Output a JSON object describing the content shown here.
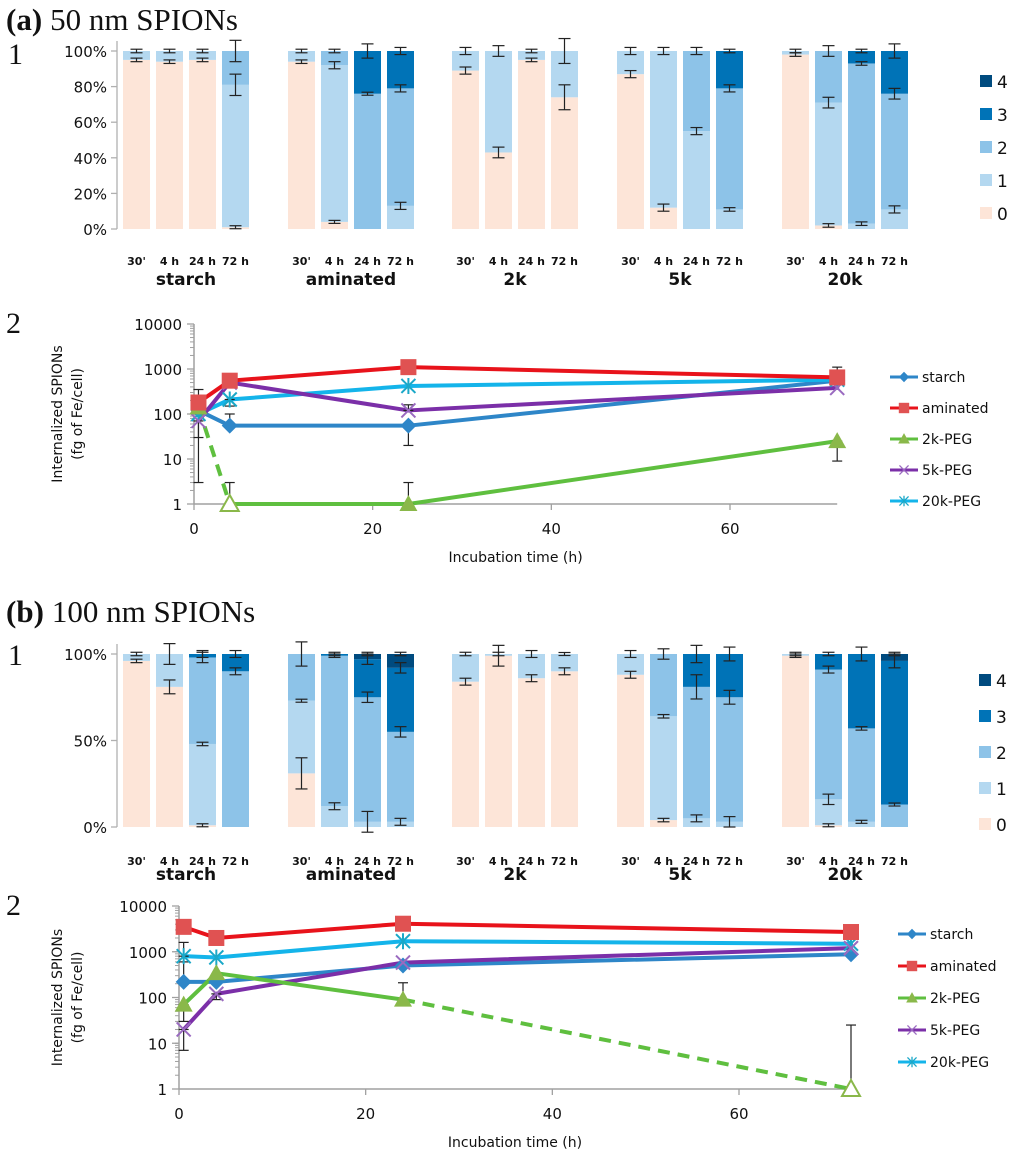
{
  "panels": {
    "a": {
      "letter": "(a)",
      "title": "50 nm SPIONs"
    },
    "b": {
      "letter": "(b)",
      "title": "100 nm SPIONs"
    }
  },
  "sub_labels": {
    "one": "1",
    "two": "2"
  },
  "colors": {
    "level_0": "#fde5d8",
    "level_1": "#b4d8f0",
    "level_2": "#8dc3e8",
    "level_3": "#0073b7",
    "level_4": "#004b7f",
    "starch": "#2e86c8",
    "aminated": "#e8131b",
    "aminated_marker": "#e05252",
    "2k-PEG": "#5fbf3f",
    "2k-PEG_marker": "#8ab84a",
    "5k-PEG": "#7b2fa8",
    "5k-PEG_marker": "#9a6ac0",
    "20k-PEG": "#14b4ea",
    "20k-PEG_marker": "#1aa8c8"
  },
  "chart_data": [
    {
      "id": "a1",
      "type": "bar",
      "stacked": true,
      "ylim": [
        0,
        100
      ],
      "yticks": [
        "0%",
        "20%",
        "40%",
        "60%",
        "80%",
        "100%"
      ],
      "ytick_values": [
        0,
        20,
        40,
        60,
        80,
        100
      ],
      "legend": [
        "4",
        "3",
        "2",
        "1",
        "0"
      ],
      "legend_placement": "right",
      "time_labels": [
        "30'",
        "4 h",
        "24 h",
        "72 h"
      ],
      "groups": [
        {
          "name": "starch",
          "bars": [
            {
              "levels": [
                95,
                5,
                0,
                0,
                0
              ],
              "err": [
                1,
                1
              ]
            },
            {
              "levels": [
                94,
                6,
                0,
                0,
                0
              ],
              "err": [
                1,
                1
              ]
            },
            {
              "levels": [
                95,
                5,
                0,
                0,
                0
              ],
              "err": [
                1,
                1
              ]
            },
            {
              "levels": [
                1,
                80,
                19,
                0,
                0
              ],
              "err": [
                0.5,
                6,
                6
              ]
            }
          ]
        },
        {
          "name": "aminated",
          "bars": [
            {
              "levels": [
                94,
                6,
                0,
                0,
                0
              ],
              "err": [
                1,
                1
              ]
            },
            {
              "levels": [
                4,
                88,
                8,
                0,
                0
              ],
              "err": [
                0.5,
                2,
                1
              ]
            },
            {
              "levels": [
                0,
                0,
                76,
                24,
                0
              ],
              "err": [
                0.5,
                4,
                4
              ]
            },
            {
              "levels": [
                0,
                13,
                66,
                21,
                0
              ],
              "err": [
                2,
                2,
                2
              ]
            }
          ]
        },
        {
          "name": "2k",
          "bars": [
            {
              "levels": [
                89,
                11,
                0,
                0,
                0
              ],
              "err": [
                2,
                2
              ]
            },
            {
              "levels": [
                43,
                57,
                0,
                0,
                0
              ],
              "err": [
                3,
                3
              ]
            },
            {
              "levels": [
                95,
                5,
                0,
                0,
                0
              ],
              "err": [
                1,
                1
              ]
            },
            {
              "levels": [
                74,
                26,
                0,
                0,
                0
              ],
              "err": [
                7,
                7
              ]
            }
          ]
        },
        {
          "name": "5k",
          "bars": [
            {
              "levels": [
                87,
                13,
                0,
                0,
                0
              ],
              "err": [
                2,
                2
              ]
            },
            {
              "levels": [
                12,
                88,
                0,
                0,
                0
              ],
              "err": [
                2,
                2
              ]
            },
            {
              "levels": [
                0,
                55,
                45,
                0,
                0
              ],
              "err": [
                2,
                2
              ]
            },
            {
              "levels": [
                0,
                11,
                68,
                21,
                0
              ],
              "err": [
                1,
                2,
                1
              ]
            }
          ]
        },
        {
          "name": "20k",
          "bars": [
            {
              "levels": [
                98,
                2,
                0,
                0,
                0
              ],
              "err": [
                1,
                1
              ]
            },
            {
              "levels": [
                2,
                69,
                29,
                0,
                0
              ],
              "err": [
                1,
                3,
                3
              ]
            },
            {
              "levels": [
                0,
                3,
                90,
                7,
                0
              ],
              "err": [
                1,
                1,
                1
              ]
            },
            {
              "levels": [
                0,
                11,
                65,
                24,
                0
              ],
              "err": [
                2,
                3,
                4
              ]
            }
          ]
        }
      ]
    },
    {
      "id": "a2",
      "type": "line",
      "yscale": "log",
      "ylim": [
        1,
        10000
      ],
      "yticks": [
        "1",
        "10",
        "100",
        "1000",
        "10000"
      ],
      "ytick_values": [
        1,
        10,
        100,
        1000,
        10000
      ],
      "xlim": [
        0,
        72
      ],
      "xticks": [
        "0",
        "20",
        "40",
        "60"
      ],
      "xtick_values": [
        0,
        20,
        40,
        60
      ],
      "xlabel": "Incubation time (h)",
      "ylabel_line1": "Internalized  SPIONs",
      "ylabel_line2": "(fg of Fe/cell)",
      "legend_placement": "right",
      "series": [
        {
          "name": "starch",
          "marker": "diamond",
          "x": [
            0.5,
            4,
            24,
            72
          ],
          "y": [
            120,
            55,
            55,
            550
          ],
          "err": [
            null,
            100,
            20,
            null
          ]
        },
        {
          "name": "aminated",
          "marker": "square",
          "x": [
            0.5,
            4,
            24,
            72
          ],
          "y": [
            180,
            550,
            1100,
            650
          ],
          "err": [
            350,
            null,
            null,
            1100
          ]
        },
        {
          "name": "2k-PEG",
          "marker": "triangle",
          "x": [
            0.5,
            4,
            24,
            72
          ],
          "y": [
            140,
            1,
            1,
            25
          ],
          "dashed_segments": [
            0
          ],
          "hollow_points": [
            1
          ],
          "err": [
            3,
            3,
            3,
            9
          ]
        },
        {
          "name": "5k-PEG",
          "marker": "x",
          "x": [
            0.5,
            4,
            24,
            72
          ],
          "y": [
            70,
            500,
            120,
            380
          ],
          "err": [
            30,
            null,
            160,
            null
          ]
        },
        {
          "name": "20k-PEG",
          "marker": "asterisk",
          "x": [
            0.5,
            4,
            24,
            72
          ],
          "y": [
            100,
            210,
            420,
            580
          ],
          "err": [
            null,
            150,
            null,
            null
          ]
        }
      ]
    },
    {
      "id": "b1",
      "type": "bar",
      "stacked": true,
      "ylim": [
        0,
        100
      ],
      "yticks": [
        "0%",
        "50%",
        "100%"
      ],
      "ytick_values": [
        0,
        50,
        100
      ],
      "legend": [
        "4",
        "3",
        "2",
        "1",
        "0"
      ],
      "legend_placement": "right",
      "time_labels": [
        "30'",
        "4 h",
        "24 h",
        "72 h"
      ],
      "time_labels_20k": [
        "30'",
        "4 h",
        "24 h",
        "72 h"
      ],
      "groups": [
        {
          "name": "starch",
          "bars": [
            {
              "levels": [
                96,
                4,
                0,
                0,
                0
              ],
              "err": [
                1,
                1
              ]
            },
            {
              "levels": [
                81,
                19,
                0,
                0,
                0
              ],
              "err": [
                4,
                6
              ]
            },
            {
              "levels": [
                1,
                47,
                50,
                2,
                0
              ],
              "err": [
                0.5,
                1,
                3,
                2
              ]
            },
            {
              "levels": [
                0,
                0,
                90,
                10,
                0
              ],
              "err": [
                2,
                2,
                2
              ]
            }
          ]
        },
        {
          "name": "aminated",
          "bars": [
            {
              "levels": [
                31,
                42,
                27,
                0,
                0
              ],
              "err": [
                9,
                0.5,
                7
              ]
            },
            {
              "levels": [
                0,
                12,
                87,
                1,
                0
              ],
              "err": [
                2,
                1
              ]
            },
            {
              "levels": [
                0,
                3,
                72,
                22,
                3
              ],
              "err": [
                6,
                3,
                3,
                1
              ]
            },
            {
              "levels": [
                0,
                3,
                52,
                37,
                8
              ],
              "err": [
                2,
                3,
                3,
                1
              ]
            }
          ]
        },
        {
          "name": "2k",
          "bars": [
            {
              "levels": [
                84,
                16,
                0,
                0,
                0
              ],
              "err": [
                2,
                1
              ]
            },
            {
              "levels": [
                99,
                1,
                0,
                0,
                0
              ],
              "err": [
                6
              ]
            },
            {
              "levels": [
                86,
                14,
                0,
                0,
                0
              ],
              "err": [
                2,
                2
              ]
            },
            {
              "levels": [
                90,
                10,
                0,
                0,
                0
              ],
              "err": [
                2,
                0.5
              ]
            }
          ]
        },
        {
          "name": "5k",
          "bars": [
            {
              "levels": [
                88,
                12,
                0,
                0,
                0
              ],
              "err": [
                2,
                2
              ]
            },
            {
              "levels": [
                4,
                60,
                36,
                0,
                0
              ],
              "err": [
                1,
                1,
                3
              ]
            },
            {
              "levels": [
                0,
                5,
                76,
                19,
                0
              ],
              "err": [
                2,
                7,
                5
              ]
            },
            {
              "levels": [
                0,
                3,
                72,
                25,
                0
              ],
              "err": [
                3,
                4,
                4
              ]
            }
          ]
        },
        {
          "name": "20k",
          "bars": [
            {
              "levels": [
                99,
                1,
                0,
                0,
                0
              ],
              "err": [
                1
              ]
            },
            {
              "levels": [
                1,
                15,
                75,
                9,
                0
              ],
              "err": [
                0.5,
                3,
                2,
                1
              ]
            },
            {
              "levels": [
                0,
                3,
                54,
                43,
                0
              ],
              "err": [
                0.5,
                1,
                4
              ]
            },
            {
              "levels": [
                0,
                0,
                13,
                83,
                4
              ],
              "err": [
                0.5,
                4,
                1
              ]
            }
          ]
        }
      ]
    },
    {
      "id": "b2",
      "type": "line",
      "yscale": "log",
      "ylim": [
        1,
        10000
      ],
      "yticks": [
        "1",
        "10",
        "100",
        "1000",
        "10000"
      ],
      "ytick_values": [
        1,
        10,
        100,
        1000,
        10000
      ],
      "xlim": [
        0,
        72
      ],
      "xticks": [
        "0",
        "20",
        "40",
        "60"
      ],
      "xtick_values": [
        0,
        20,
        40,
        60
      ],
      "xlabel": "Incubation time (h)",
      "ylabel_line1": "Internalized  SPIONs",
      "ylabel_line2": "(fg of Fe/cell)",
      "legend_placement": "right",
      "series": [
        {
          "name": "starch",
          "marker": "diamond",
          "x": [
            0.5,
            4,
            24,
            72
          ],
          "y": [
            220,
            220,
            500,
            880
          ],
          "err": [
            600,
            null,
            null,
            null
          ]
        },
        {
          "name": "aminated",
          "marker": "square",
          "x": [
            0.5,
            4,
            24,
            72
          ],
          "y": [
            3500,
            2000,
            4100,
            2700
          ],
          "err": [
            null,
            null,
            null,
            null
          ]
        },
        {
          "name": "2k-PEG",
          "marker": "triangle",
          "x": [
            0.5,
            4,
            24,
            72
          ],
          "y": [
            70,
            340,
            90,
            1
          ],
          "dashed_segments": [
            2
          ],
          "hollow_points": [
            3
          ],
          "err": [
            30,
            null,
            210,
            25
          ]
        },
        {
          "name": "5k-PEG",
          "marker": "x",
          "x": [
            0.5,
            4,
            24,
            72
          ],
          "y": [
            20,
            120,
            580,
            1200
          ],
          "err": [
            7,
            90,
            null,
            null
          ]
        },
        {
          "name": "20k-PEG",
          "marker": "asterisk",
          "x": [
            0.5,
            4,
            24,
            72
          ],
          "y": [
            800,
            750,
            1700,
            1500
          ],
          "err": [
            1600,
            null,
            null,
            null
          ]
        }
      ]
    }
  ]
}
